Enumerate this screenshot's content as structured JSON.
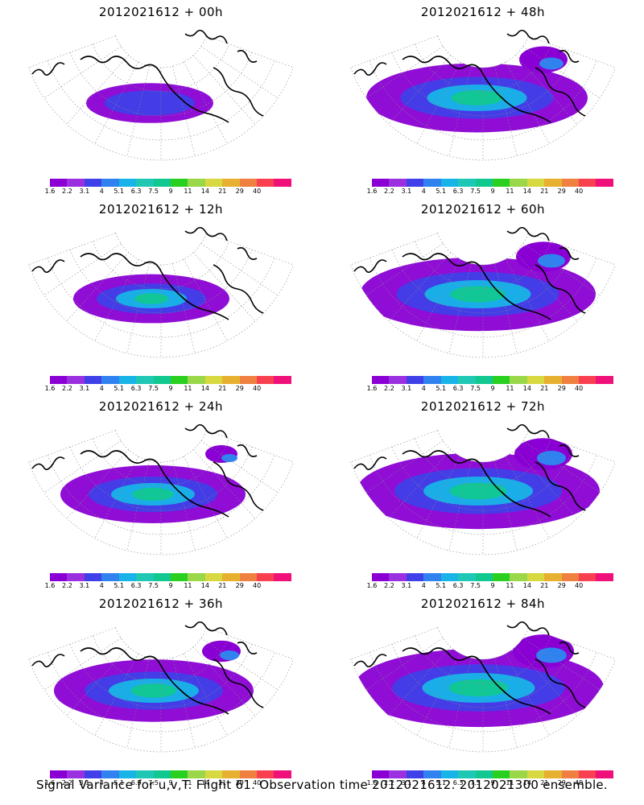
{
  "panels": [
    {
      "title": "2012021612 + 00h",
      "intensity": 0.1
    },
    {
      "title": "2012021612 + 48h",
      "intensity": 0.75
    },
    {
      "title": "2012021612 + 12h",
      "intensity": 0.3
    },
    {
      "title": "2012021612 + 60h",
      "intensity": 0.85
    },
    {
      "title": "2012021612 + 24h",
      "intensity": 0.5
    },
    {
      "title": "2012021612 + 72h",
      "intensity": 0.9
    },
    {
      "title": "2012021612 + 36h",
      "intensity": 0.6
    },
    {
      "title": "2012021612 + 84h",
      "intensity": 0.95
    }
  ],
  "colorbar": {
    "labels": [
      "1.6",
      "2.2",
      "3.1",
      "4",
      "5.1",
      "6.3",
      "7.5",
      "9",
      "11",
      "14",
      "21",
      "29",
      "40"
    ],
    "colors": [
      "#8a00d4",
      "#9b30e0",
      "#4040e8",
      "#2f82f0",
      "#18b4e8",
      "#1fc8b4",
      "#10c890",
      "#2ad020",
      "#9ad84a",
      "#d8d840",
      "#e8b030",
      "#f08040",
      "#f84050",
      "#f0107a"
    ]
  },
  "caption": "Signal Variance for u,v,T. Flight 61. Observation time 2012021612. 2012021300 ensemble."
}
